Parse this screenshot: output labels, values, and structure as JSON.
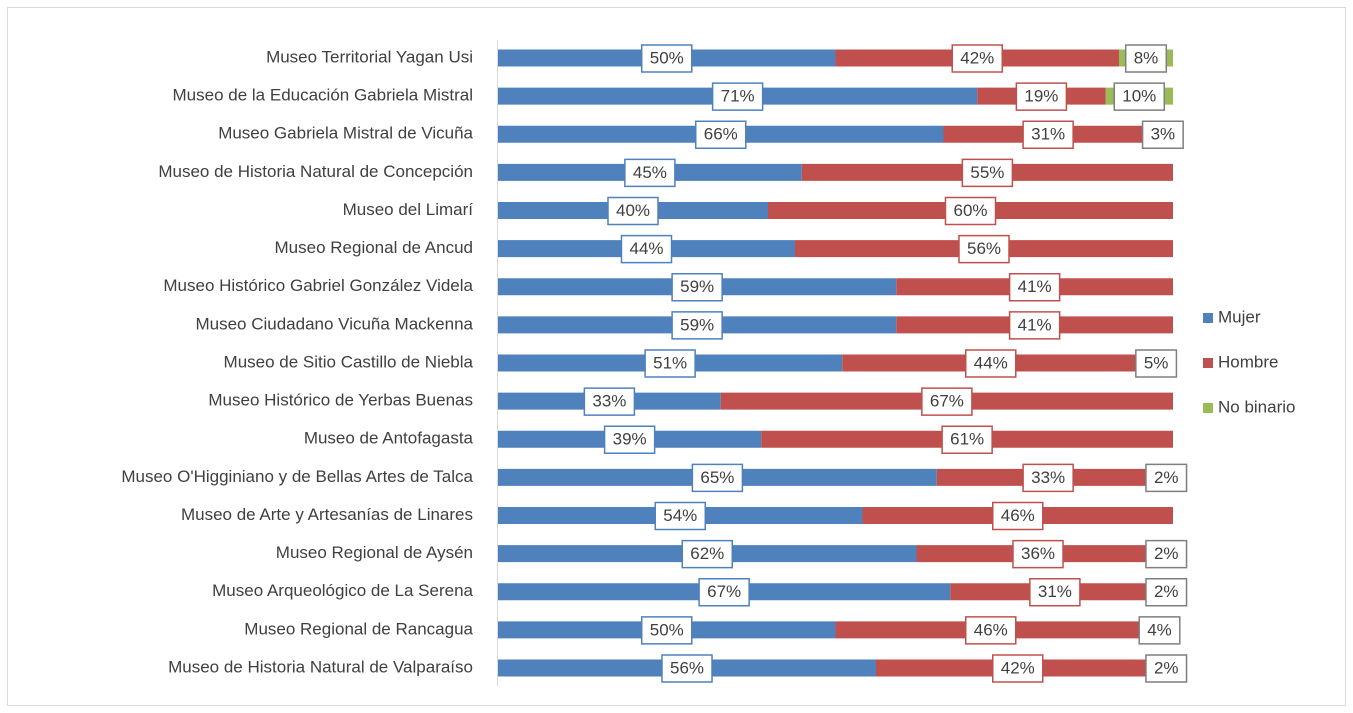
{
  "chart_data": {
    "type": "stacked_bar_horizontal",
    "categories": [
      "Museo Territorial Yagan Usi",
      "Museo de la Educación Gabriela Mistral",
      "Museo Gabriela Mistral de Vicuña",
      "Museo de Historia Natural de Concepción",
      "Museo del Limarí",
      "Museo Regional de Ancud",
      "Museo Histórico Gabriel González Videla",
      "Museo Ciudadano Vicuña Mackenna",
      "Museo de Sitio Castillo de Niebla",
      "Museo Histórico de Yerbas Buenas",
      "Museo de Antofagasta",
      "Museo O'Higginiano y de Bellas Artes de Talca",
      "Museo de Arte y Artesanías de Linares",
      "Museo Regional de Aysén",
      "Museo Arqueológico de La Serena",
      "Museo Regional de Rancagua",
      "Museo de Historia Natural de Valparaíso"
    ],
    "series": [
      {
        "name": "Mujer",
        "color": "#4f81bd",
        "label_border": "#4f81bd",
        "values": [
          50,
          71,
          66,
          45,
          40,
          44,
          59,
          59,
          51,
          33,
          39,
          65,
          54,
          62,
          67,
          50,
          56
        ],
        "value_labels": [
          "50%",
          "71%",
          "66%",
          "45%",
          "40%",
          "44%",
          "59%",
          "59%",
          "51%",
          "33%",
          "39%",
          "65%",
          "54%",
          "62%",
          "67%",
          "50%",
          "56%"
        ]
      },
      {
        "name": "Hombre",
        "color": "#c0504d",
        "label_border": "#c0504d",
        "values": [
          42,
          19,
          31,
          55,
          60,
          56,
          41,
          41,
          44,
          67,
          61,
          33,
          46,
          36,
          31,
          46,
          42
        ],
        "value_labels": [
          "42%",
          "19%",
          "31%",
          "55%",
          "60%",
          "56%",
          "41%",
          "41%",
          "44%",
          "67%",
          "61%",
          "33%",
          "46%",
          "36%",
          "31%",
          "46%",
          "42%"
        ]
      },
      {
        "name": "No binario",
        "color": "#9bbb59",
        "label_border": "#7f7f7f",
        "values": [
          8,
          10,
          3,
          null,
          null,
          null,
          null,
          null,
          5,
          null,
          null,
          2,
          null,
          2,
          2,
          4,
          2
        ],
        "value_labels": [
          "8%",
          "10%",
          "3%",
          null,
          null,
          null,
          null,
          null,
          "5%",
          null,
          null,
          "2%",
          null,
          "2%",
          "2%",
          "4%",
          "2%"
        ]
      }
    ],
    "xlim": [
      0,
      100
    ],
    "legend": "right"
  }
}
